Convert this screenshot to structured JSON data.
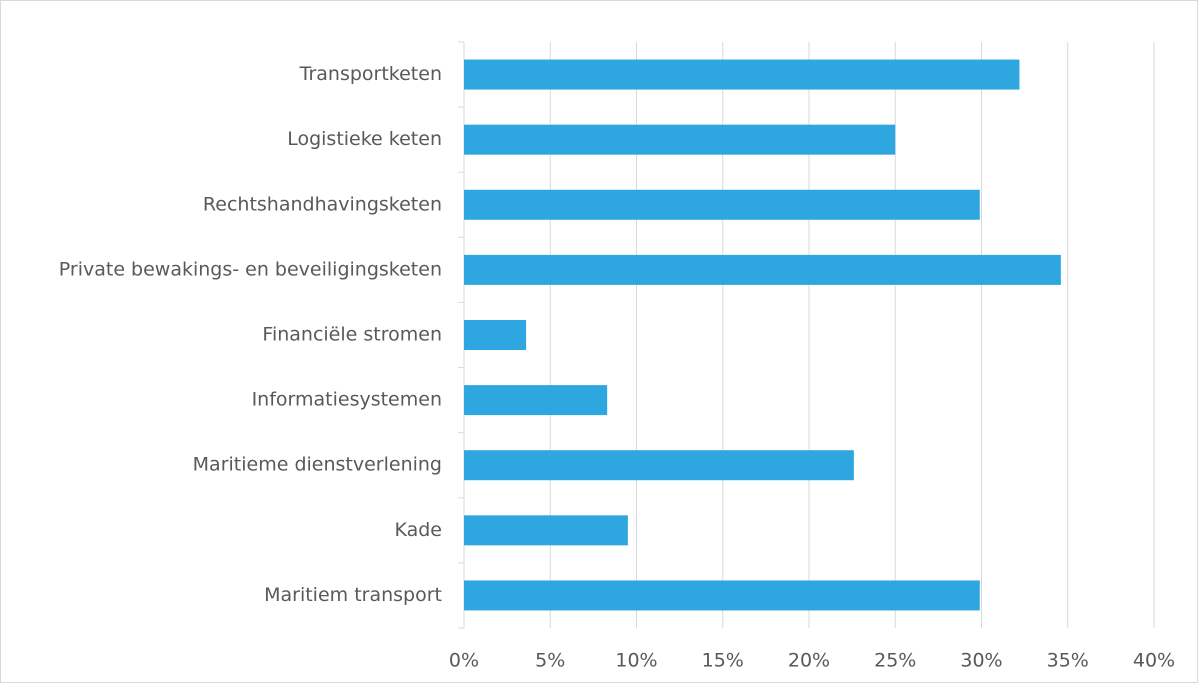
{
  "chart_data": {
    "type": "hbar",
    "categories": [
      "Transportketen",
      "Logistieke keten",
      "Rechtshandhavingsketen",
      "Private bewakings- en beveiligingsketen",
      "Financiële stromen",
      "Informatiesystemen",
      "Maritieme dienstverlening",
      "Kade",
      "Maritiem transport"
    ],
    "values": [
      32.2,
      25.0,
      29.9,
      34.6,
      3.6,
      8.3,
      22.6,
      9.5,
      29.9
    ],
    "color": "#2ea7e0",
    "xlim": [
      0,
      40
    ],
    "xticks": [
      {
        "value": 0,
        "label": "0%"
      },
      {
        "value": 5,
        "label": "5%"
      },
      {
        "value": 10,
        "label": "10%"
      },
      {
        "value": 15,
        "label": "15%"
      },
      {
        "value": 20,
        "label": "20%"
      },
      {
        "value": 25,
        "label": "25%"
      },
      {
        "value": 30,
        "label": "30%"
      },
      {
        "value": 35,
        "label": "35%"
      },
      {
        "value": 40,
        "label": "40%"
      }
    ],
    "grid": true
  }
}
